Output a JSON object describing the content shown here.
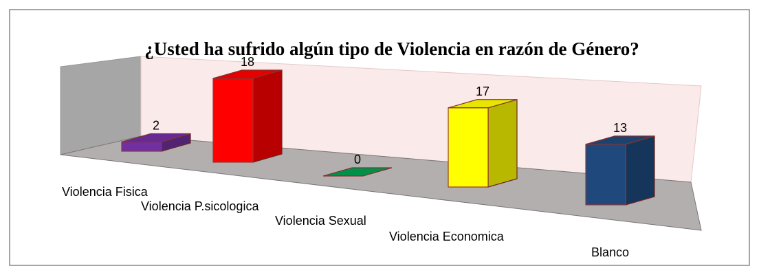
{
  "chart_data": {
    "type": "bar3d",
    "title": "¿Usted ha sufrido algún tipo de Violencia en razón de Género?",
    "categories": [
      "Violencia Fisica",
      "Violencia P.sicologica",
      "Violencia Sexual",
      "Violencia Economica",
      "Blanco"
    ],
    "values": [
      2,
      18,
      0,
      17,
      13
    ],
    "colors": [
      "#7030a0",
      "#ff0000",
      "#00a050",
      "#ffff00",
      "#1f497d"
    ]
  }
}
